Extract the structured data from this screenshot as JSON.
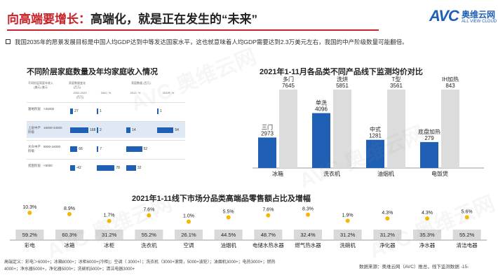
{
  "header": {
    "title_highlight": "向高端要增长：",
    "title_rest": "高端化，就是正在发生的“未来”",
    "logo_avc": "AVC",
    "logo_cn": "奥维云网",
    "logo_en": "ALL VIEW CLOUD",
    "accent": "#c8232a",
    "brand": "#1f5fb4"
  },
  "intro": {
    "icon": "checkbox-icon",
    "text": "我国2035年的愿景发展目标是中国人均GDP达到中等发达国家水平，这也就意味着人均GDP需要达到2.3万美元左右，我国的中产阶级数量可能翻倍。"
  },
  "left_table": {
    "title": "不同阶层家庭数量及年均家庭收入情况",
    "headers": {
      "col1": "不同阶层家庭年收入\n(美元) 美元",
      "col2": "家庭数量变化\n(百万)",
      "group": "家庭数量 (百万)",
      "sub1": "1990年",
      "sub2": "2003年",
      "sub3": "2020年",
      "period1": "2002-2022\n(百万)",
      "period2": "2002, %",
      "period3": "2012, %",
      "period4": "2022F, %"
    },
    "rows": [
      {
        "label": "富裕阶层",
        "income": ">34000",
        "v1": "27",
        "v2": "1",
        "v3": "",
        "v4": "1",
        "selected": false
      },
      {
        "label": "上层中产\n阶级",
        "income": "16000-34000",
        "v1": "168",
        "v2": "2",
        "v3": "14",
        "v4": "54",
        "selected": true
      },
      {
        "label": "大众中产\n阶级",
        "income": "9000-16000",
        "v1": "66",
        "v2": "7",
        "v3": "52",
        "v4": "",
        "selected": false
      },
      {
        "label": "贫困阶层",
        "income": "<9000",
        "v1": "-42",
        "v2": "78",
        "v3": "32",
        "v4": "",
        "selected": false
      }
    ]
  },
  "chart_data": [
    {
      "type": "bar",
      "title": "2021年1-11月各品类不同产品线下监测均价对比",
      "categories": [
        "冰箱",
        "洗衣机",
        "油烟机",
        "电饭煲"
      ],
      "series": [
        {
          "name": "",
          "color": "#1f5fb4",
          "labels": [
            "三门",
            "单洗",
            "中式",
            "底盘加热"
          ],
          "values": [
            2973,
            4096,
            1281,
            279
          ]
        },
        {
          "name": "",
          "color": "#dcdcdc",
          "labels": [
            "多门",
            "洗烘",
            "T型",
            "IH加热"
          ],
          "values": [
            7645,
            5851,
            3561,
            843
          ]
        }
      ],
      "display_scale": {
        "冰箱": 7645,
        "洗衣机": 5851,
        "油烟机": 3561,
        "电饭煲": 843
      },
      "xlabel": "",
      "ylabel": ""
    },
    {
      "type": "bar",
      "title": "2021年1-11线下市场分品类高端品零售额占比及增幅",
      "categories": [
        "彩电",
        "冰箱",
        "冰柜",
        "洗衣机",
        "空调",
        "油烟机",
        "电储水热水器",
        "燃气热水器",
        "洗碗机",
        "净化器",
        "净水器",
        "清洁电器"
      ],
      "share_pct": [
        59.2,
        60.3,
        31.2,
        55.2,
        26.1,
        44.5,
        48.7,
        32.4,
        31.2,
        31.2,
        35.3,
        55.2
      ],
      "growth_pct": [
        10.3,
        8.9,
        1.7,
        7.6,
        1.0,
        5.5,
        7.6,
        8.3,
        1.9,
        4.3,
        4.3,
        5.6
      ],
      "share_color": "#d9d9d9",
      "growth_color": "#f5b800",
      "xlabel": "",
      "ylabel": ""
    }
  ],
  "footnote": "高端定义：彩电＞6000+；冰箱8000+；冰柜6000+(冷柜)；空调（ 3000+）；洗衣机（3000+滚筒，5000+波轮）；油烟机3000+；电热3000+；燃热4000+；净水器5000+，净化器5000+；洗碗机5000+；清洁电器3000+",
  "source": "数据来源：奥维云网（AVC）推总，线下监测数据 -15-",
  "watermark": "AVC 奥维云网"
}
